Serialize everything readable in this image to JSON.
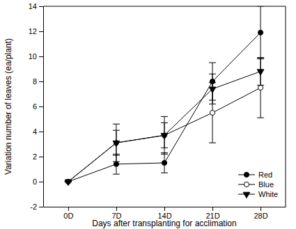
{
  "chart_data": {
    "type": "line",
    "x_label": "Days after transplanting for acclimation",
    "y_label": "Variation number of leaves (ea/plant)",
    "categories": [
      "0D",
      "7D",
      "14D",
      "21D",
      "28D"
    ],
    "ylim": [
      -2,
      14
    ],
    "yticks": [
      -2,
      0,
      2,
      4,
      6,
      8,
      10,
      12,
      14
    ],
    "legend": "bottom-right",
    "series": [
      {
        "name": "Red",
        "color": "#000000",
        "marker": "circle",
        "line_style": "solid",
        "values": [
          0,
          1.4,
          1.5,
          8.0,
          11.9
        ],
        "errors": [
          0,
          0.8,
          0.8,
          1.5,
          2.1
        ]
      },
      {
        "name": "Blue",
        "color": "#000000",
        "marker": "circle-open",
        "line_style": "solid",
        "values": [
          0,
          3.1,
          3.7,
          5.5,
          7.5
        ],
        "errors": [
          0,
          1.5,
          1.5,
          2.4,
          2.4
        ]
      },
      {
        "name": "White",
        "color": "#000000",
        "marker": "triangle-down",
        "line_style": "solid",
        "values": [
          0,
          3.1,
          3.7,
          7.4,
          8.8
        ],
        "errors": [
          0,
          1.0,
          1.0,
          1.2,
          1.1
        ]
      }
    ]
  }
}
